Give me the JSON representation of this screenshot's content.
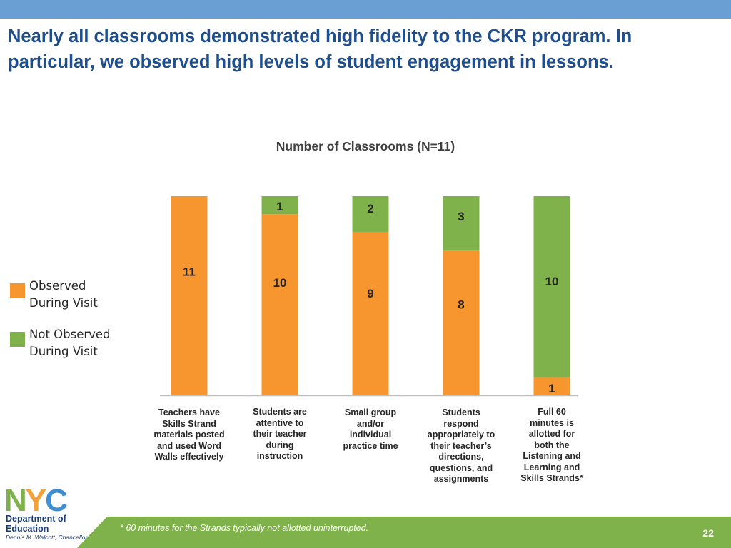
{
  "slide": {
    "headline": "Nearly all classrooms demonstrated high fidelity to the CKR program.  In particular, we observed high levels of student engagement in lessons.",
    "footnote": "* 60 minutes for the Strands typically not allotted uninterrupted.",
    "page_number": "22",
    "logo": {
      "mark_text": "NYC",
      "department": "Department of Education",
      "department_line1": "Department of",
      "department_line2": "Education",
      "chancellor": "Dennis M. Walcott, Chancellor"
    },
    "colors": {
      "top_bar": "#6a9fd3",
      "headline": "#1f4e8c",
      "footer_band": "#7fb24a",
      "logo_orange": "#f4a13a",
      "logo_green": "#7fb24a",
      "logo_blue": "#3d8fd1"
    }
  },
  "chart_data": {
    "type": "bar",
    "stacked": true,
    "title": "Number of Classrooms (N=11)",
    "categories": [
      [
        "Teachers have",
        "Skills Strand",
        "materials posted",
        "and used Word",
        "Walls effectively"
      ],
      [
        "Students are",
        "attentive to",
        "their teacher",
        "during",
        "instruction"
      ],
      [
        "Small group",
        "and/or",
        "individual",
        "practice time"
      ],
      [
        "Students",
        "respond",
        "appropriately to",
        "their teacher’s",
        "directions,",
        "questions, and",
        "assignments"
      ],
      [
        "Full 60",
        "minutes is",
        "allotted for",
        "both the",
        "Listening and",
        "Learning and",
        "Skills Strands*"
      ]
    ],
    "series": [
      {
        "name": "Observed During Visit",
        "name_lines": [
          "Observed",
          "During Visit"
        ],
        "color": "#f7962f",
        "values": [
          11,
          10,
          9,
          8,
          1
        ]
      },
      {
        "name": "Not Observed During Visit",
        "name_lines": [
          "Not Observed",
          "During Visit"
        ],
        "color": "#7fb24a",
        "values": [
          0,
          1,
          2,
          3,
          10
        ]
      }
    ],
    "ylim": [
      0,
      11
    ],
    "grid": false,
    "legend": "left"
  }
}
